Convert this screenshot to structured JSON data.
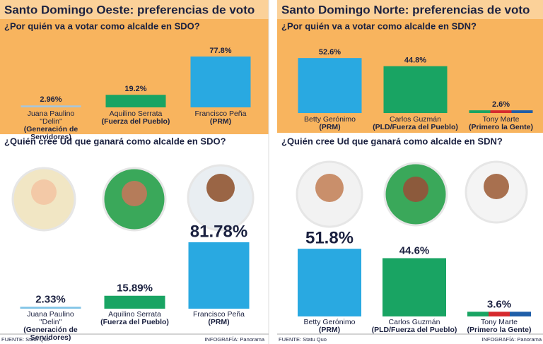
{
  "chart_data": [
    {
      "type": "bar",
      "title": "Santo Domingo Oeste: preferencias de voto",
      "subtitle": "¿Por quién va a votar como alcalde en SDO?",
      "categories": [
        "Juana Paulino \"Delin\"",
        "Aquilino Serrata",
        "Francisco Peña"
      ],
      "parties": [
        "(Generación de Servidores)",
        "(Fuerza del Pueblo)",
        "(PRM)"
      ],
      "values": [
        2.96,
        19.2,
        77.8
      ],
      "value_labels": [
        "2.96%",
        "19.2%",
        "77.8%"
      ],
      "colors": [
        "#a9c6da",
        "#19a463",
        "#29a9e1"
      ],
      "ylim": [
        0,
        100
      ]
    },
    {
      "type": "bar",
      "title": "Santo Domingo Norte: preferencias de voto",
      "subtitle": "¿Por quién va a votar como alcalde en SDN?",
      "categories": [
        "Betty Gerónimo",
        "Carlos Guzmán",
        "Tony Marte"
      ],
      "parties": [
        "(PRM)",
        "(PLD/Fuerza del Pueblo)",
        "(Primero la Gente)"
      ],
      "values": [
        52.6,
        44.8,
        2.6
      ],
      "value_labels": [
        "52.6%",
        "44.8%",
        "2.6%"
      ],
      "colors": [
        "#29a9e1",
        "#19a463",
        [
          "#19a463",
          "#d62a2e",
          "#1f5ea8"
        ]
      ],
      "ylim": [
        0,
        100
      ]
    },
    {
      "type": "bar",
      "title": "¿Quién cree Ud que ganará como alcalde en SDO?",
      "categories": [
        "Juana Paulino \"Delin\"",
        "Aquilino Serrata",
        "Francisco Peña"
      ],
      "parties": [
        "(Generación de Servidores)",
        "(Fuerza del Pueblo)",
        "(PRM)"
      ],
      "values": [
        2.33,
        15.89,
        81.78
      ],
      "value_labels": [
        "2.33%",
        "15.89%",
        "81.78%"
      ],
      "colors": [
        "#7fc3e6",
        "#19a463",
        "#29a9e1"
      ],
      "ylim": [
        0,
        100
      ],
      "source": "FUENTE: Statu Quo",
      "credit": "INFOGRAFÍA: Panorama"
    },
    {
      "type": "bar",
      "title": "¿Quién cree Ud que ganará como alcalde en SDN?",
      "categories": [
        "Betty Gerónimo",
        "Carlos Guzmán",
        "Tony Marte"
      ],
      "parties": [
        "(PRM)",
        "(PLD/Fuerza del Pueblo)",
        "(Primero la Gente)"
      ],
      "values": [
        51.8,
        44.6,
        3.6
      ],
      "value_labels": [
        "51.8%",
        "44.6%",
        "3.6%"
      ],
      "colors": [
        "#29a9e1",
        "#19a463",
        [
          "#19a463",
          "#d62a2e",
          "#1f5ea8"
        ]
      ],
      "ylim": [
        0,
        100
      ],
      "source": "FUENTE: Statu Quo",
      "credit": "INFOGRAFÍA: Panorama"
    }
  ]
}
